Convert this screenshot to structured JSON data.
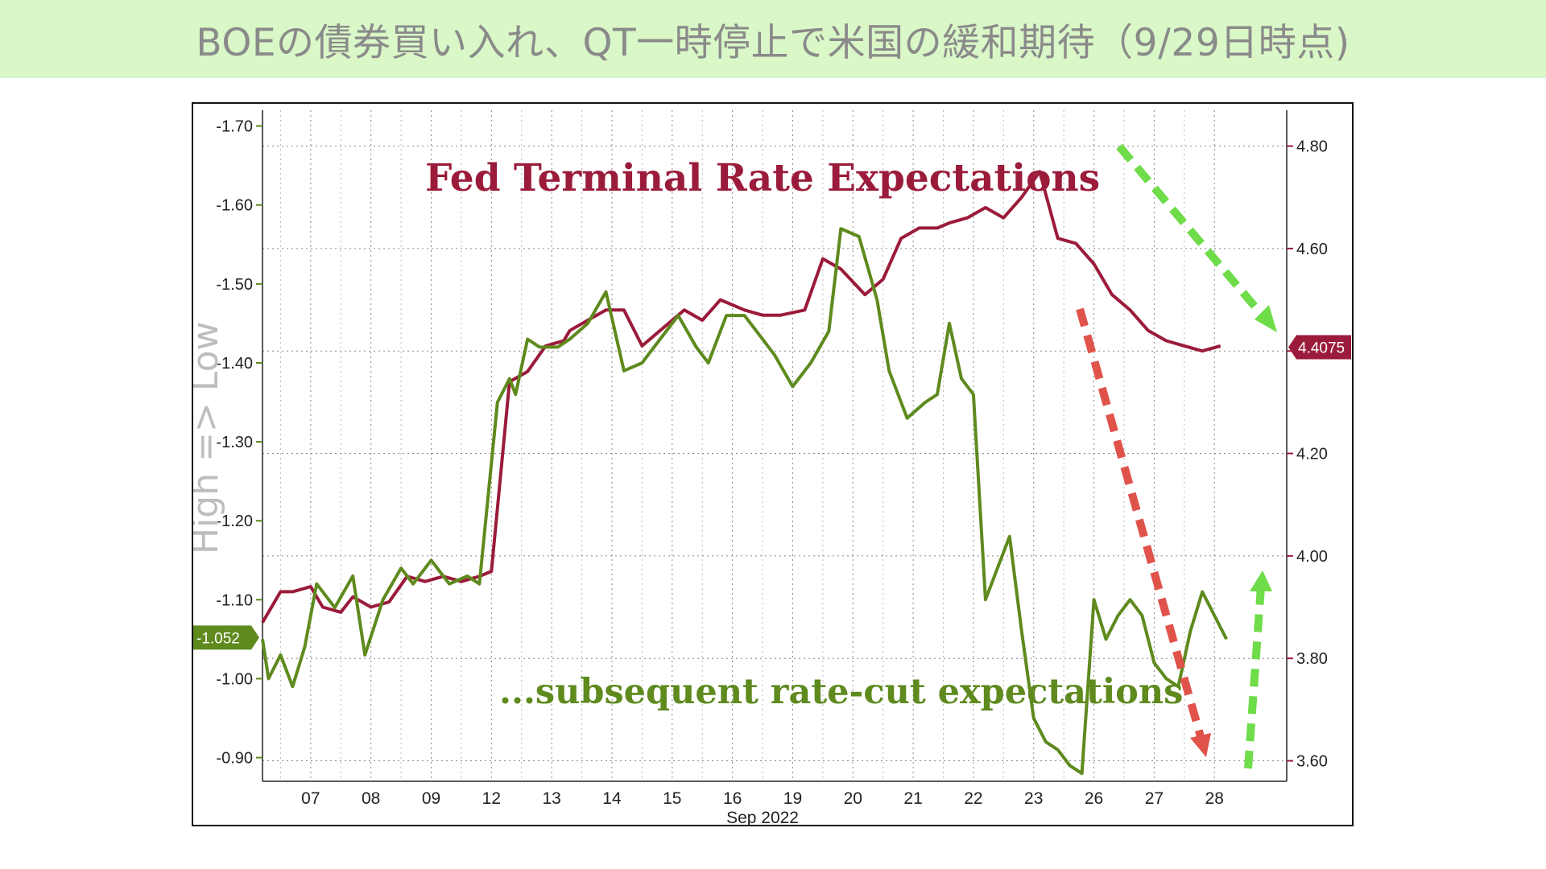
{
  "banner": {
    "title": "BOEの債券買い入れ、QT一時停止で米国の緩和期待（9/29日時点)",
    "background": "#d9f7c7"
  },
  "chart_data": {
    "type": "line",
    "title": "Fed Terminal Rate Expectations",
    "annotation": "...subsequent rate-cut expectations",
    "xlabel": "Sep 2022",
    "y_left_label": "High => Low",
    "x_ticks": [
      "07",
      "08",
      "09",
      "12",
      "13",
      "14",
      "15",
      "16",
      "19",
      "20",
      "21",
      "22",
      "23",
      "26",
      "27",
      "28"
    ],
    "x_range": [
      0,
      17
    ],
    "left_axis": {
      "ticks": [
        "-1.70",
        "-1.60",
        "-1.50",
        "-1.40",
        "-1.30",
        "-1.20",
        "-1.10",
        "-1.00",
        "-0.90"
      ],
      "ylim": [
        -0.87,
        -1.72
      ],
      "last_value_label": "-1.052",
      "last_value": -1.052,
      "color": "#5e8a1e"
    },
    "right_axis": {
      "ticks": [
        "4.80",
        "4.60",
        "4.40",
        "4.20",
        "4.00",
        "3.80",
        "3.60"
      ],
      "ylim": [
        3.56,
        4.87
      ],
      "last_value_label": "4.4075",
      "last_value": 4.4075,
      "color": "#9b1b3a"
    },
    "grid": true,
    "series": [
      {
        "name": "Fed Terminal Rate Expectations",
        "axis": "right",
        "color": "#9b1b3a",
        "x": [
          0,
          0.3,
          0.5,
          0.8,
          1.0,
          1.3,
          1.5,
          1.8,
          2.1,
          2.4,
          2.7,
          3.0,
          3.3,
          3.6,
          3.8,
          4.1,
          4.4,
          4.7,
          5.0,
          5.1,
          5.4,
          5.7,
          6.0,
          6.3,
          6.6,
          7.0,
          7.3,
          7.6,
          8.0,
          8.3,
          8.6,
          9.0,
          9.3,
          9.6,
          10.0,
          10.3,
          10.6,
          10.9,
          11.2,
          11.4,
          11.7,
          12.0,
          12.3,
          12.6,
          12.9,
          13.2,
          13.5,
          13.8,
          14.1,
          14.4,
          14.7,
          15.0,
          15.3,
          15.6,
          15.9
        ],
        "values": [
          3.87,
          3.93,
          3.93,
          3.94,
          3.9,
          3.89,
          3.92,
          3.9,
          3.91,
          3.96,
          3.95,
          3.96,
          3.95,
          3.96,
          3.97,
          4.34,
          4.36,
          4.41,
          4.42,
          4.44,
          4.46,
          4.48,
          4.48,
          4.41,
          4.44,
          4.48,
          4.46,
          4.5,
          4.48,
          4.47,
          4.47,
          4.48,
          4.58,
          4.56,
          4.51,
          4.54,
          4.62,
          4.64,
          4.64,
          4.65,
          4.66,
          4.68,
          4.66,
          4.7,
          4.75,
          4.62,
          4.61,
          4.57,
          4.51,
          4.48,
          4.44,
          4.42,
          4.41,
          4.4,
          4.41
        ]
      },
      {
        "name": "...subsequent rate-cut expectations",
        "axis": "left",
        "color": "#5e8a1e",
        "x": [
          0,
          0.1,
          0.3,
          0.5,
          0.7,
          0.9,
          1.2,
          1.5,
          1.7,
          2.0,
          2.3,
          2.5,
          2.8,
          3.1,
          3.4,
          3.6,
          3.9,
          4.1,
          4.2,
          4.4,
          4.6,
          4.9,
          5.1,
          5.4,
          5.7,
          6.0,
          6.3,
          6.6,
          6.9,
          7.2,
          7.4,
          7.7,
          8.0,
          8.2,
          8.5,
          8.8,
          9.1,
          9.4,
          9.6,
          9.9,
          10.2,
          10.4,
          10.7,
          11.0,
          11.2,
          11.4,
          11.6,
          11.8,
          12.0,
          12.2,
          12.4,
          12.6,
          12.8,
          13.0,
          13.2,
          13.4,
          13.6,
          13.8,
          14.0,
          14.2,
          14.4,
          14.6,
          14.8,
          15.0,
          15.2,
          15.4,
          15.6,
          15.8,
          16.0
        ],
        "values": [
          -1.05,
          -1.0,
          -1.03,
          -0.99,
          -1.04,
          -1.12,
          -1.09,
          -1.13,
          -1.03,
          -1.1,
          -1.14,
          -1.12,
          -1.15,
          -1.12,
          -1.13,
          -1.12,
          -1.35,
          -1.38,
          -1.36,
          -1.43,
          -1.42,
          -1.42,
          -1.43,
          -1.45,
          -1.49,
          -1.39,
          -1.4,
          -1.43,
          -1.46,
          -1.42,
          -1.4,
          -1.46,
          -1.46,
          -1.44,
          -1.41,
          -1.37,
          -1.4,
          -1.44,
          -1.57,
          -1.56,
          -1.48,
          -1.39,
          -1.33,
          -1.35,
          -1.36,
          -1.45,
          -1.38,
          -1.36,
          -1.1,
          -1.14,
          -1.18,
          -1.06,
          -0.95,
          -0.92,
          -0.91,
          -0.89,
          -0.88,
          -1.1,
          -1.05,
          -1.08,
          -1.1,
          -1.08,
          -1.02,
          -1.0,
          -0.99,
          -1.06,
          -1.11,
          -1.08,
          -1.05
        ]
      }
    ]
  }
}
